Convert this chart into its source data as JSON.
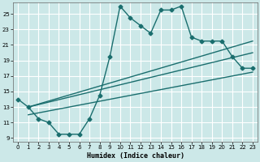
{
  "xlabel": "Humidex (Indice chaleur)",
  "ylabel": "",
  "background_color": "#cce8e8",
  "grid_color": "#ffffff",
  "line_color": "#1a6e6e",
  "xlim": [
    -0.5,
    23.5
  ],
  "ylim": [
    8.5,
    26.5
  ],
  "xticks": [
    0,
    1,
    2,
    3,
    4,
    5,
    6,
    7,
    8,
    9,
    10,
    11,
    12,
    13,
    14,
    15,
    16,
    17,
    18,
    19,
    20,
    21,
    22,
    23
  ],
  "yticks": [
    9,
    11,
    13,
    15,
    17,
    19,
    21,
    23,
    25
  ],
  "line1_x": [
    0,
    1,
    2,
    3,
    4,
    5,
    6,
    7,
    8,
    9,
    10,
    11,
    12,
    13,
    14,
    15,
    16,
    17,
    18,
    19,
    20,
    21,
    22,
    23
  ],
  "line1_y": [
    14.0,
    13.0,
    11.5,
    11.0,
    9.5,
    9.5,
    9.5,
    11.5,
    14.5,
    19.5,
    26.0,
    24.5,
    23.5,
    22.5,
    25.5,
    25.5,
    26.0,
    22.0,
    21.5,
    21.5,
    21.5,
    19.5,
    18.0,
    18.0
  ],
  "line2_x": [
    1,
    23
  ],
  "line2_y": [
    13.0,
    21.5
  ],
  "line3_x": [
    1,
    23
  ],
  "line3_y": [
    13.0,
    20.0
  ],
  "line4_x": [
    1,
    23
  ],
  "line4_y": [
    12.0,
    17.5
  ],
  "marker_size": 2.5,
  "line_width": 1.0
}
